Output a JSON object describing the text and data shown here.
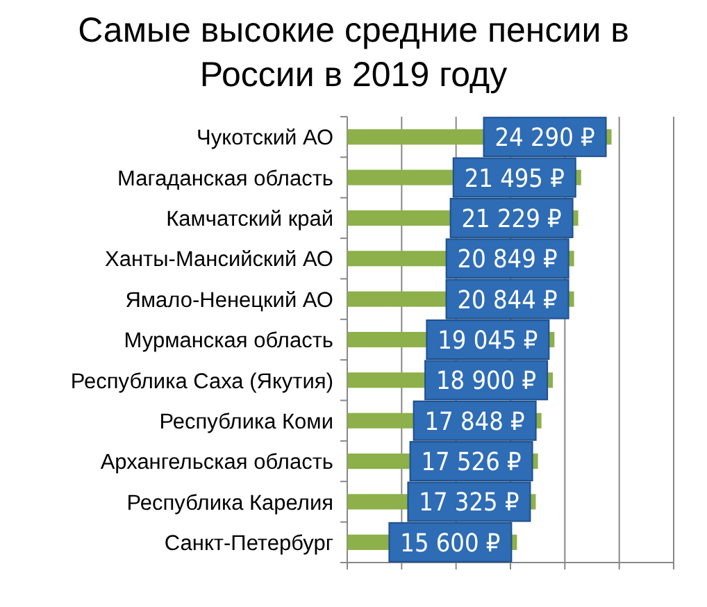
{
  "chart_data": {
    "type": "bar",
    "orientation": "horizontal",
    "title": "Самые высокие средние пенсии в России в 2019 году",
    "categories": [
      "Чукотский АО",
      "Магаданская область",
      "Камчатский край",
      "Ханты-Мансийский АО",
      "Ямало-Ненецкий АО",
      "Мурманская область",
      "Республика Саха (Якутия)",
      "Республика Коми",
      "Архангельская область",
      "Республика Карелия",
      "Санкт-Петербург"
    ],
    "values": [
      24290,
      21495,
      21229,
      20849,
      20844,
      19045,
      18900,
      17848,
      17526,
      17325,
      15600
    ],
    "value_labels": [
      "24 290 ₽",
      "21 495 ₽",
      "21 229 ₽",
      "20 849 ₽",
      "20 844 ₽",
      "19 045 ₽",
      "18 900 ₽",
      "17 848 ₽",
      "17 526 ₽",
      "17 325 ₽",
      "15 600 ₽"
    ],
    "color": "#8db04a",
    "xlim": [
      0,
      30000
    ],
    "xticks": [
      {
        "value": 0,
        "label": null
      },
      {
        "value": 5000,
        "label": null
      },
      {
        "value": 10000,
        "label": null
      },
      {
        "value": 15000,
        "label": null
      },
      {
        "value": 20000,
        "label": null
      },
      {
        "value": 25000,
        "label": null
      },
      {
        "value": 30000,
        "label": null
      }
    ],
    "grid": "x"
  }
}
